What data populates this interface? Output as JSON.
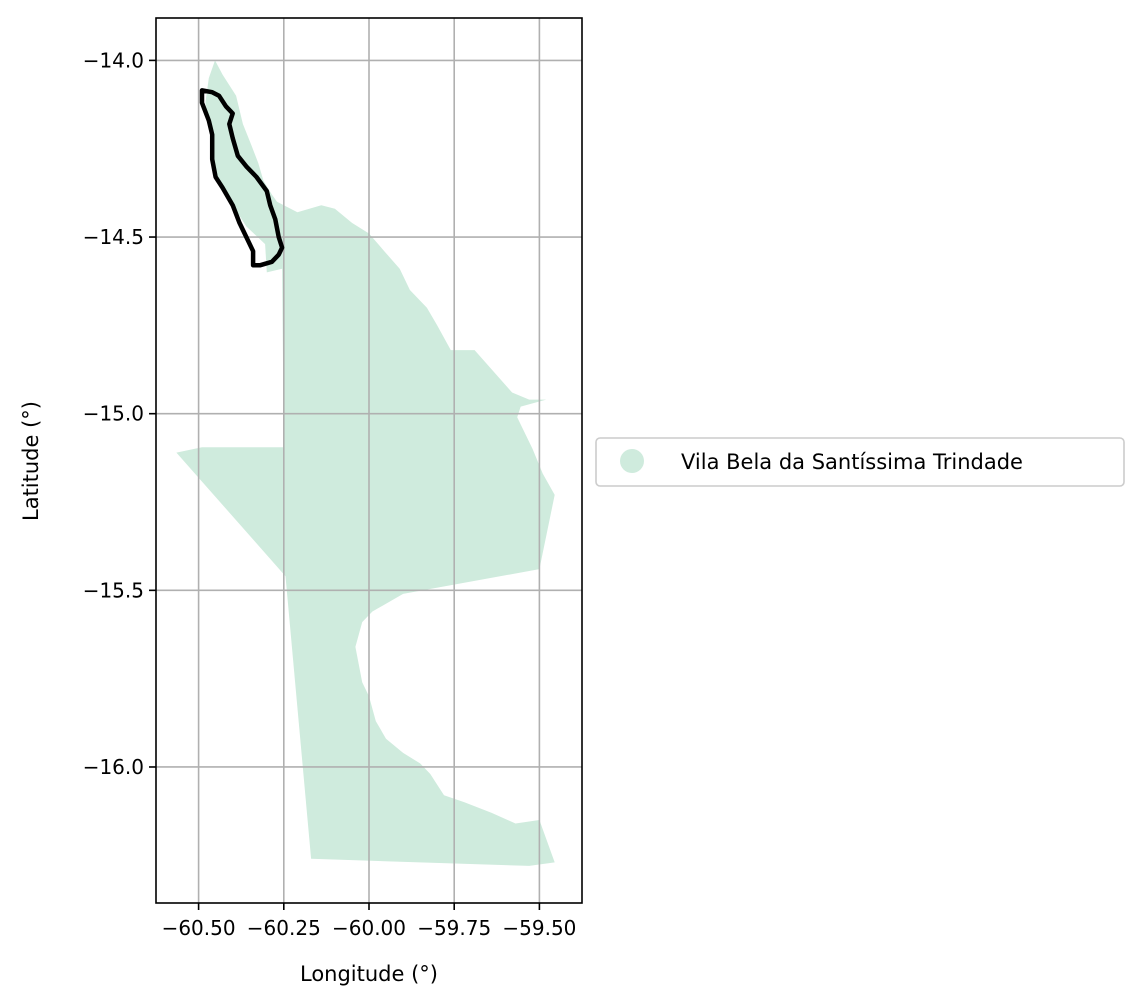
{
  "chart_data": {
    "type": "map",
    "xlabel": "Longitude (°)",
    "ylabel": "Latitude (°)",
    "xlim": [
      -60.625,
      -59.375
    ],
    "ylim": [
      -16.385,
      -13.88
    ],
    "x_ticks": [
      -60.5,
      -60.25,
      -60.0,
      -59.75,
      -59.5
    ],
    "x_tick_labels": [
      "−60.50",
      "−60.25",
      "−60.00",
      "−59.75",
      "−59.50"
    ],
    "y_ticks": [
      -14.0,
      -14.5,
      -15.0,
      -15.5,
      -16.0
    ],
    "y_tick_labels": [
      "−14.0",
      "−14.5",
      "−15.0",
      "−15.5",
      "−16.0"
    ],
    "grid": true,
    "legend_placement": "center-left outside",
    "region": {
      "name": "Vila Bela da Santíssima Trindade",
      "color": "#cfebdd",
      "boundary": [
        [
          -60.452,
          -14.0
        ],
        [
          -60.43,
          -14.04
        ],
        [
          -60.39,
          -14.1
        ],
        [
          -60.37,
          -14.18
        ],
        [
          -60.345,
          -14.24
        ],
        [
          -60.325,
          -14.29
        ],
        [
          -60.31,
          -14.34
        ],
        [
          -60.285,
          -14.38
        ],
        [
          -60.27,
          -14.4
        ],
        [
          -60.21,
          -14.43
        ],
        [
          -60.14,
          -14.41
        ],
        [
          -60.1,
          -14.42
        ],
        [
          -60.05,
          -14.46
        ],
        [
          -60.0,
          -14.49
        ],
        [
          -59.955,
          -14.54
        ],
        [
          -59.91,
          -14.59
        ],
        [
          -59.88,
          -14.65
        ],
        [
          -59.83,
          -14.7
        ],
        [
          -59.8,
          -14.75
        ],
        [
          -59.76,
          -14.82
        ],
        [
          -59.69,
          -14.82
        ],
        [
          -59.58,
          -14.94
        ],
        [
          -59.53,
          -14.96
        ],
        [
          -59.48,
          -14.96
        ],
        [
          -59.555,
          -14.98
        ],
        [
          -59.565,
          -15.01
        ],
        [
          -59.52,
          -15.1
        ],
        [
          -59.49,
          -15.17
        ],
        [
          -59.455,
          -15.23
        ],
        [
          -59.5,
          -15.44
        ],
        [
          -59.9,
          -15.51
        ],
        [
          -59.99,
          -15.56
        ],
        [
          -60.02,
          -15.59
        ],
        [
          -60.04,
          -15.66
        ],
        [
          -60.02,
          -15.76
        ],
        [
          -60.0,
          -15.8
        ],
        [
          -59.98,
          -15.87
        ],
        [
          -59.95,
          -15.92
        ],
        [
          -59.9,
          -15.96
        ],
        [
          -59.85,
          -15.99
        ],
        [
          -59.82,
          -16.02
        ],
        [
          -59.78,
          -16.08
        ],
        [
          -59.72,
          -16.1
        ],
        [
          -59.64,
          -16.13
        ],
        [
          -59.57,
          -16.16
        ],
        [
          -59.5,
          -16.15
        ],
        [
          -59.455,
          -16.27
        ],
        [
          -59.53,
          -16.28
        ],
        [
          -60.17,
          -16.26
        ],
        [
          -60.245,
          -15.46
        ],
        [
          -60.565,
          -15.11
        ],
        [
          -60.49,
          -15.095
        ],
        [
          -60.25,
          -15.095
        ],
        [
          -60.255,
          -14.59
        ],
        [
          -60.3,
          -14.6
        ],
        [
          -60.305,
          -14.52
        ],
        [
          -60.36,
          -14.47
        ],
        [
          -60.42,
          -14.38
        ],
        [
          -60.45,
          -14.33
        ],
        [
          -60.46,
          -14.24
        ],
        [
          -60.47,
          -14.17
        ],
        [
          -60.48,
          -14.12
        ],
        [
          -60.47,
          -14.05
        ]
      ]
    },
    "outline": {
      "color": "#000000",
      "boundary": [
        [
          -60.49,
          -14.085
        ],
        [
          -60.46,
          -14.09
        ],
        [
          -60.44,
          -14.1
        ],
        [
          -60.42,
          -14.13
        ],
        [
          -60.4,
          -14.15
        ],
        [
          -60.41,
          -14.18
        ],
        [
          -60.4,
          -14.22
        ],
        [
          -60.385,
          -14.27
        ],
        [
          -60.36,
          -14.3
        ],
        [
          -60.34,
          -14.32
        ],
        [
          -60.33,
          -14.33
        ],
        [
          -60.3,
          -14.37
        ],
        [
          -60.29,
          -14.41
        ],
        [
          -60.275,
          -14.45
        ],
        [
          -60.265,
          -14.5
        ],
        [
          -60.255,
          -14.53
        ],
        [
          -60.265,
          -14.55
        ],
        [
          -60.285,
          -14.57
        ],
        [
          -60.32,
          -14.58
        ],
        [
          -60.34,
          -14.58
        ],
        [
          -60.34,
          -14.54
        ],
        [
          -60.36,
          -14.5
        ],
        [
          -60.38,
          -14.46
        ],
        [
          -60.4,
          -14.41
        ],
        [
          -60.43,
          -14.36
        ],
        [
          -60.45,
          -14.33
        ],
        [
          -60.46,
          -14.28
        ],
        [
          -60.46,
          -14.21
        ],
        [
          -60.47,
          -14.17
        ],
        [
          -60.49,
          -14.12
        ]
      ]
    }
  }
}
